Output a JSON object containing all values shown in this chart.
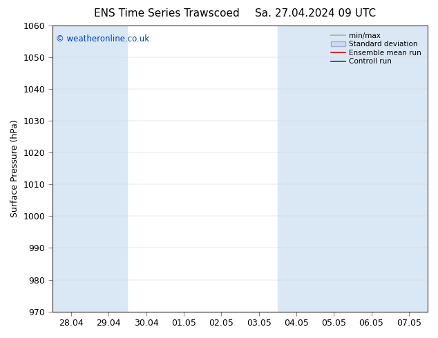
{
  "title_left": "ENS Time Series Trawscoed",
  "title_right": "Sa. 27.04.2024 09 UTC",
  "ylabel": "Surface Pressure (hPa)",
  "ylim": [
    970,
    1060
  ],
  "yticks": [
    970,
    980,
    990,
    1000,
    1010,
    1020,
    1030,
    1040,
    1050,
    1060
  ],
  "x_labels": [
    "28.04",
    "29.04",
    "30.04",
    "01.05",
    "02.05",
    "03.05",
    "04.05",
    "05.05",
    "06.05",
    "07.05"
  ],
  "x_positions": [
    0,
    1,
    2,
    3,
    4,
    5,
    6,
    7,
    8,
    9
  ],
  "copyright": "© weatheronline.co.uk",
  "bg_color": "#ffffff",
  "band_color": "#dae8f5",
  "title_fontsize": 11,
  "axis_fontsize": 9,
  "tick_fontsize": 9,
  "copyright_color": "#0044aa"
}
